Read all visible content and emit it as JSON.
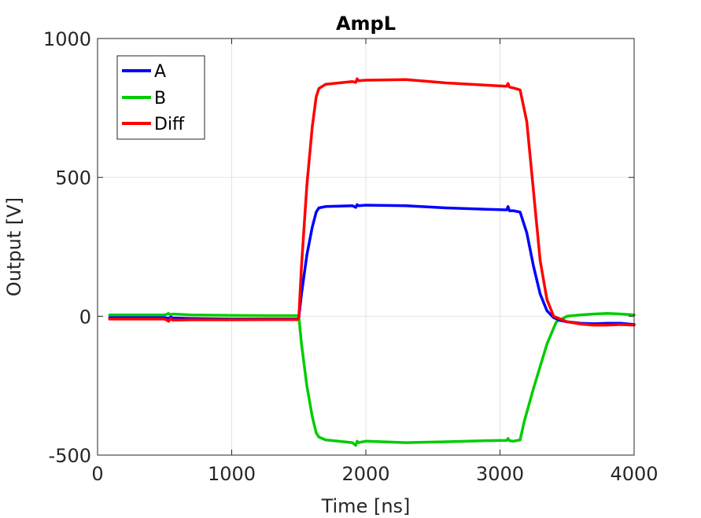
{
  "chart_data": {
    "type": "line",
    "title": "AmpL",
    "xlabel": "Time [ns]",
    "ylabel": "Output [V]",
    "xlim": [
      0,
      4000
    ],
    "ylim": [
      -500,
      1000
    ],
    "xticks": [
      0,
      1000,
      2000,
      3000,
      4000
    ],
    "yticks": [
      -500,
      0,
      500,
      1000
    ],
    "xtick_labels": [
      "0",
      "1000",
      "2000",
      "3000",
      "4000"
    ],
    "ytick_labels": [
      "-500",
      "0",
      "500",
      "1000"
    ],
    "grid": true,
    "legend_position": "top-left",
    "series": [
      {
        "name": "A",
        "color": "#0000ff",
        "x": [
          90,
          500,
          530,
          545,
          560,
          700,
          1000,
          1300,
          1490,
          1500,
          1520,
          1560,
          1600,
          1630,
          1650,
          1700,
          1900,
          1925,
          1935,
          1945,
          2000,
          2300,
          2600,
          2900,
          3050,
          3060,
          3070,
          3100,
          3150,
          3200,
          3250,
          3300,
          3350,
          3400,
          3450,
          3500,
          3600,
          3700,
          3800,
          3900,
          4000
        ],
        "y": [
          -5,
          -5,
          -8,
          -3,
          -6,
          -8,
          -10,
          -10,
          -10,
          -5,
          80,
          220,
          320,
          375,
          390,
          395,
          398,
          392,
          402,
          398,
          400,
          398,
          390,
          385,
          383,
          395,
          380,
          380,
          375,
          300,
          180,
          80,
          20,
          -5,
          -15,
          -20,
          -25,
          -27,
          -25,
          -25,
          -30
        ]
      },
      {
        "name": "B",
        "color": "#00cc00",
        "x": [
          90,
          500,
          530,
          545,
          560,
          700,
          1000,
          1300,
          1490,
          1500,
          1520,
          1560,
          1600,
          1630,
          1650,
          1700,
          1900,
          1925,
          1935,
          1945,
          2000,
          2300,
          2600,
          2900,
          3050,
          3060,
          3070,
          3100,
          3150,
          3180,
          3250,
          3350,
          3420,
          3500,
          3600,
          3700,
          3800,
          3900,
          4000
        ],
        "y": [
          5,
          5,
          10,
          5,
          8,
          5,
          3,
          2,
          2,
          0,
          -100,
          -250,
          -360,
          -420,
          -435,
          -445,
          -455,
          -465,
          -450,
          -455,
          -450,
          -455,
          -452,
          -448,
          -447,
          -440,
          -448,
          -450,
          -445,
          -380,
          -260,
          -100,
          -20,
          0,
          5,
          8,
          10,
          8,
          5
        ]
      },
      {
        "name": "Diff",
        "color": "#ff0000",
        "x": [
          90,
          500,
          530,
          545,
          560,
          700,
          1000,
          1300,
          1490,
          1500,
          1520,
          1560,
          1600,
          1630,
          1650,
          1700,
          1900,
          1925,
          1935,
          1945,
          2000,
          2300,
          2600,
          2900,
          3050,
          3060,
          3070,
          3100,
          3150,
          3200,
          3250,
          3300,
          3350,
          3400,
          3450,
          3500,
          3600,
          3700,
          3800,
          3900,
          4000
        ],
        "y": [
          -10,
          -10,
          -18,
          -8,
          -14,
          -13,
          -13,
          -12,
          -12,
          -5,
          180,
          470,
          680,
          790,
          820,
          835,
          845,
          842,
          855,
          848,
          850,
          852,
          840,
          832,
          828,
          838,
          825,
          822,
          815,
          700,
          450,
          200,
          60,
          0,
          -10,
          -20,
          -28,
          -32,
          -32,
          -30,
          -32
        ]
      }
    ]
  }
}
